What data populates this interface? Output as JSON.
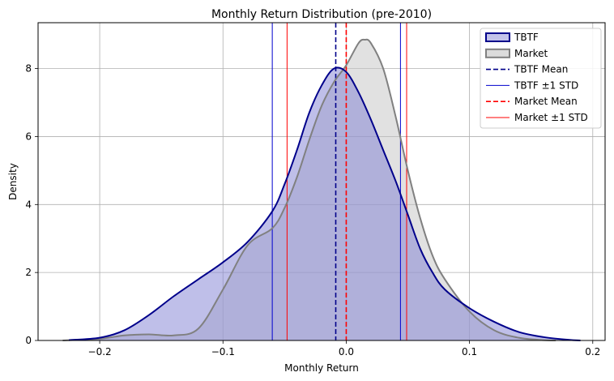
{
  "chart_data": {
    "type": "area",
    "title": "Monthly Return Distribution (pre-2010)",
    "xlabel": "Monthly Return",
    "ylabel": "Density",
    "xlim": [
      -0.25,
      0.21
    ],
    "ylim": [
      0,
      9.35
    ],
    "xticks": [
      -0.2,
      -0.1,
      0.0,
      0.1,
      0.2
    ],
    "xtick_labels": [
      "−0.2",
      "−0.1",
      "0.0",
      "0.1",
      "0.2"
    ],
    "yticks": [
      0,
      2,
      4,
      6,
      8
    ],
    "ytick_labels": [
      "0",
      "2",
      "4",
      "6",
      "8"
    ],
    "grid": true,
    "legend_position": "top-right",
    "series": [
      {
        "name": "TBTF",
        "kind": "kde",
        "color": "#00008b",
        "fill": "#8080d4",
        "x": [
          -0.225,
          -0.2,
          -0.18,
          -0.16,
          -0.14,
          -0.12,
          -0.1,
          -0.08,
          -0.06,
          -0.05,
          -0.04,
          -0.03,
          -0.02,
          -0.01,
          0.0,
          0.01,
          0.02,
          0.03,
          0.04,
          0.05,
          0.06,
          0.07,
          0.08,
          0.1,
          0.12,
          0.14,
          0.16,
          0.18,
          0.19
        ],
        "y": [
          0.01,
          0.08,
          0.3,
          0.75,
          1.3,
          1.8,
          2.3,
          2.9,
          3.8,
          4.6,
          5.6,
          6.7,
          7.5,
          8.0,
          7.9,
          7.3,
          6.5,
          5.6,
          4.7,
          3.7,
          2.7,
          2.0,
          1.5,
          0.95,
          0.55,
          0.25,
          0.1,
          0.02,
          0.0
        ]
      },
      {
        "name": "Market",
        "kind": "kde",
        "color": "#808080",
        "fill": "#c4c4c4",
        "x": [
          -0.23,
          -0.2,
          -0.18,
          -0.16,
          -0.14,
          -0.12,
          -0.1,
          -0.08,
          -0.06,
          -0.05,
          -0.04,
          -0.03,
          -0.02,
          -0.01,
          0.0,
          0.01,
          0.015,
          0.02,
          0.03,
          0.04,
          0.05,
          0.06,
          0.07,
          0.08,
          0.1,
          0.12,
          0.14,
          0.16,
          0.17
        ],
        "y": [
          0.0,
          0.05,
          0.15,
          0.18,
          0.15,
          0.35,
          1.5,
          2.8,
          3.3,
          3.9,
          4.8,
          5.9,
          6.9,
          7.6,
          8.1,
          8.75,
          8.85,
          8.75,
          8.0,
          6.6,
          5.0,
          3.6,
          2.5,
          1.8,
          0.85,
          0.3,
          0.08,
          0.01,
          0.0
        ]
      }
    ],
    "lines": [
      {
        "name": "TBTF Mean",
        "x": -0.0085,
        "style": "dashed",
        "color": "#00008b"
      },
      {
        "name": "TBTF ±1 STD",
        "x": [
          -0.06,
          0.044
        ],
        "style": "solid",
        "color": "#0000cd"
      },
      {
        "name": "Market Mean",
        "x": 0.0,
        "style": "dashed",
        "color": "#ff0000"
      },
      {
        "name": "Market ±1 STD",
        "x": [
          -0.048,
          0.049
        ],
        "style": "solid",
        "color": "#ff0000"
      }
    ],
    "legend": [
      {
        "label": "TBTF",
        "kind": "patch",
        "color": "#00008b",
        "fill": "#c3c3ea"
      },
      {
        "label": "Market",
        "kind": "patch",
        "color": "#808080",
        "fill": "#dcdcdc"
      },
      {
        "label": "TBTF Mean",
        "kind": "dashed",
        "color": "#00008b"
      },
      {
        "label": "TBTF ±1 STD",
        "kind": "solid",
        "color": "#0000cd"
      },
      {
        "label": "Market Mean",
        "kind": "dashed",
        "color": "#ff0000"
      },
      {
        "label": "Market ±1 STD",
        "kind": "solid",
        "color": "#ff0000"
      }
    ]
  }
}
